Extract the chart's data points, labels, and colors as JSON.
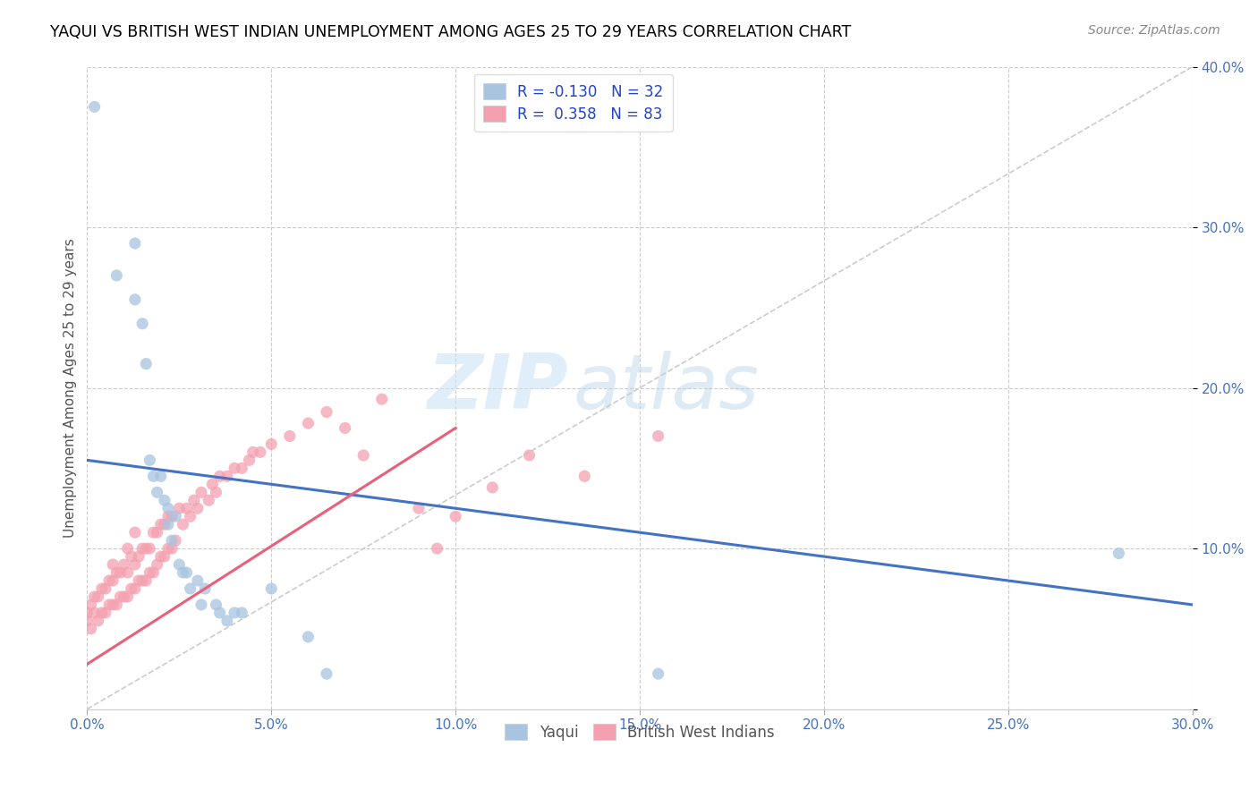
{
  "title": "YAQUI VS BRITISH WEST INDIAN UNEMPLOYMENT AMONG AGES 25 TO 29 YEARS CORRELATION CHART",
  "source": "Source: ZipAtlas.com",
  "ylabel": "Unemployment Among Ages 25 to 29 years",
  "xlim": [
    0,
    0.3
  ],
  "ylim": [
    0,
    0.4
  ],
  "xticks": [
    0.0,
    0.05,
    0.1,
    0.15,
    0.2,
    0.25,
    0.3
  ],
  "yticks": [
    0.0,
    0.1,
    0.2,
    0.3,
    0.4
  ],
  "yaqui_color": "#a8c4e0",
  "bwi_color": "#f4a0b0",
  "yaqui_line_color": "#4472c4",
  "bwi_line_color": "#e8607a",
  "diagonal_color": "#cccccc",
  "watermark_zip": "ZIP",
  "watermark_atlas": "atlas",
  "R_yaqui": -0.13,
  "N_yaqui": 32,
  "R_bwi": 0.358,
  "N_bwi": 83,
  "legend_label1": "Yaqui",
  "legend_label2": "British West Indians",
  "yaqui_x": [
    0.002,
    0.008,
    0.013,
    0.013,
    0.015,
    0.016,
    0.017,
    0.018,
    0.019,
    0.02,
    0.021,
    0.022,
    0.022,
    0.023,
    0.024,
    0.025,
    0.026,
    0.027,
    0.028,
    0.03,
    0.031,
    0.032,
    0.035,
    0.036,
    0.038,
    0.04,
    0.042,
    0.05,
    0.06,
    0.065,
    0.155,
    0.28
  ],
  "yaqui_y": [
    0.375,
    0.27,
    0.29,
    0.255,
    0.24,
    0.215,
    0.155,
    0.145,
    0.135,
    0.145,
    0.13,
    0.125,
    0.115,
    0.105,
    0.12,
    0.09,
    0.085,
    0.085,
    0.075,
    0.08,
    0.065,
    0.075,
    0.065,
    0.06,
    0.055,
    0.06,
    0.06,
    0.075,
    0.045,
    0.022,
    0.022,
    0.097
  ],
  "bwi_x": [
    0.0,
    0.0,
    0.001,
    0.001,
    0.002,
    0.002,
    0.003,
    0.003,
    0.004,
    0.004,
    0.005,
    0.005,
    0.006,
    0.006,
    0.007,
    0.007,
    0.007,
    0.008,
    0.008,
    0.009,
    0.009,
    0.01,
    0.01,
    0.011,
    0.011,
    0.011,
    0.012,
    0.012,
    0.013,
    0.013,
    0.013,
    0.014,
    0.014,
    0.015,
    0.015,
    0.016,
    0.016,
    0.017,
    0.017,
    0.018,
    0.018,
    0.019,
    0.019,
    0.02,
    0.02,
    0.021,
    0.021,
    0.022,
    0.022,
    0.023,
    0.023,
    0.024,
    0.025,
    0.026,
    0.027,
    0.028,
    0.029,
    0.03,
    0.031,
    0.033,
    0.034,
    0.035,
    0.036,
    0.038,
    0.04,
    0.042,
    0.044,
    0.045,
    0.047,
    0.05,
    0.055,
    0.06,
    0.065,
    0.07,
    0.075,
    0.08,
    0.09,
    0.095,
    0.1,
    0.11,
    0.12,
    0.135,
    0.155
  ],
  "bwi_y": [
    0.055,
    0.06,
    0.05,
    0.065,
    0.06,
    0.07,
    0.055,
    0.07,
    0.06,
    0.075,
    0.06,
    0.075,
    0.065,
    0.08,
    0.065,
    0.08,
    0.09,
    0.065,
    0.085,
    0.07,
    0.085,
    0.07,
    0.09,
    0.07,
    0.085,
    0.1,
    0.075,
    0.095,
    0.075,
    0.09,
    0.11,
    0.08,
    0.095,
    0.08,
    0.1,
    0.08,
    0.1,
    0.085,
    0.1,
    0.085,
    0.11,
    0.09,
    0.11,
    0.095,
    0.115,
    0.095,
    0.115,
    0.1,
    0.12,
    0.1,
    0.12,
    0.105,
    0.125,
    0.115,
    0.125,
    0.12,
    0.13,
    0.125,
    0.135,
    0.13,
    0.14,
    0.135,
    0.145,
    0.145,
    0.15,
    0.15,
    0.155,
    0.16,
    0.16,
    0.165,
    0.17,
    0.178,
    0.185,
    0.175,
    0.158,
    0.193,
    0.125,
    0.1,
    0.12,
    0.138,
    0.158,
    0.145,
    0.17
  ],
  "yaqui_line_x": [
    0.0,
    0.3
  ],
  "yaqui_line_y": [
    0.155,
    0.065
  ],
  "bwi_line_x": [
    0.0,
    0.1
  ],
  "bwi_line_y": [
    0.028,
    0.175
  ]
}
